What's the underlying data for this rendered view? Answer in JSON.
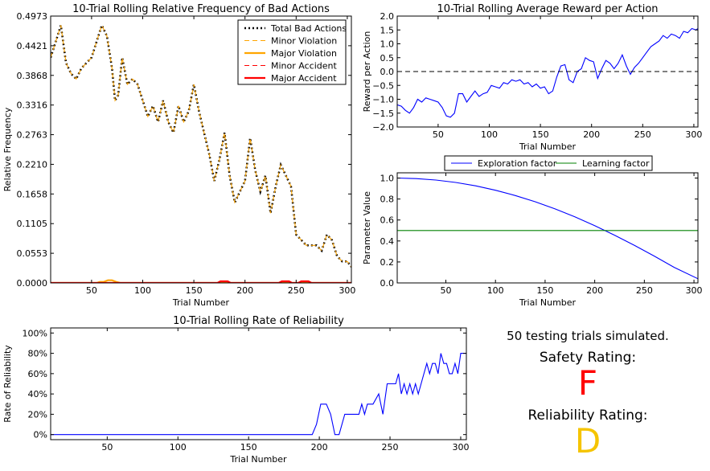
{
  "chart_data": [
    {
      "id": "bad_actions",
      "type": "line",
      "title": "10-Trial Rolling Relative Frequency of Bad Actions",
      "xlabel": "Trial Number",
      "ylabel": "Relative Frequency",
      "xlim": [
        10,
        304
      ],
      "ylim": [
        0,
        0.4973
      ],
      "xticks": [
        50,
        100,
        150,
        200,
        250,
        300
      ],
      "yticks": [
        "0.0000",
        "0.0553",
        "0.1105",
        "0.1658",
        "0.2210",
        "0.2763",
        "0.3316",
        "0.3868",
        "0.4421",
        "0.4973"
      ],
      "legend": "top-right",
      "series": [
        {
          "name": "Total Bad Actions",
          "color": "#000000",
          "style": "dotted",
          "x": [
            10,
            15,
            20,
            25,
            30,
            35,
            40,
            45,
            50,
            55,
            60,
            65,
            70,
            73,
            76,
            80,
            85,
            90,
            95,
            100,
            105,
            110,
            115,
            120,
            125,
            130,
            135,
            140,
            145,
            150,
            155,
            160,
            165,
            170,
            175,
            180,
            185,
            190,
            195,
            200,
            205,
            210,
            215,
            220,
            225,
            230,
            235,
            240,
            245,
            250,
            255,
            260,
            265,
            270,
            275,
            280,
            285,
            290,
            295,
            300,
            304
          ],
          "y": [
            0.42,
            0.45,
            0.48,
            0.41,
            0.39,
            0.38,
            0.4,
            0.41,
            0.42,
            0.45,
            0.48,
            0.46,
            0.4,
            0.34,
            0.35,
            0.42,
            0.37,
            0.38,
            0.37,
            0.34,
            0.31,
            0.33,
            0.3,
            0.34,
            0.3,
            0.28,
            0.33,
            0.3,
            0.32,
            0.37,
            0.32,
            0.28,
            0.24,
            0.19,
            0.23,
            0.28,
            0.2,
            0.15,
            0.17,
            0.19,
            0.27,
            0.21,
            0.17,
            0.2,
            0.13,
            0.18,
            0.22,
            0.2,
            0.18,
            0.09,
            0.08,
            0.07,
            0.07,
            0.07,
            0.06,
            0.09,
            0.08,
            0.05,
            0.04,
            0.04,
            0.03
          ]
        },
        {
          "name": "Minor Violation",
          "color": "#ffa500",
          "style": "dashed",
          "x": [
            10,
            15,
            20,
            25,
            30,
            35,
            40,
            45,
            50,
            55,
            60,
            65,
            70,
            73,
            76,
            80,
            85,
            90,
            95,
            100,
            105,
            110,
            115,
            120,
            125,
            130,
            135,
            140,
            145,
            150,
            155,
            160,
            165,
            170,
            175,
            180,
            185,
            190,
            195,
            200,
            205,
            210,
            215,
            220,
            225,
            230,
            235,
            240,
            245,
            250,
            255,
            260,
            265,
            270,
            275,
            280,
            285,
            290,
            295,
            300,
            304
          ],
          "y": [
            0.42,
            0.45,
            0.48,
            0.41,
            0.39,
            0.38,
            0.4,
            0.41,
            0.42,
            0.45,
            0.48,
            0.46,
            0.4,
            0.34,
            0.35,
            0.42,
            0.37,
            0.38,
            0.37,
            0.34,
            0.31,
            0.33,
            0.3,
            0.34,
            0.3,
            0.28,
            0.33,
            0.3,
            0.32,
            0.37,
            0.32,
            0.28,
            0.24,
            0.19,
            0.23,
            0.28,
            0.2,
            0.15,
            0.17,
            0.19,
            0.27,
            0.21,
            0.17,
            0.2,
            0.13,
            0.18,
            0.22,
            0.2,
            0.18,
            0.09,
            0.08,
            0.07,
            0.07,
            0.07,
            0.06,
            0.09,
            0.08,
            0.05,
            0.04,
            0.04,
            0.03
          ]
        },
        {
          "name": "Major Violation",
          "color": "#ffa500",
          "style": "solid",
          "x": [
            10,
            55,
            58,
            62,
            66,
            70,
            74,
            78,
            304
          ],
          "y": [
            0,
            0,
            0.002,
            0.002,
            0.005,
            0.005,
            0.002,
            0,
            0
          ]
        },
        {
          "name": "Minor Accident",
          "color": "#ff0000",
          "style": "dashed",
          "x": [
            10,
            304
          ],
          "y": [
            0,
            0
          ]
        },
        {
          "name": "Major Accident",
          "color": "#ff0000",
          "style": "solid",
          "x": [
            10,
            173,
            176,
            183,
            186,
            233,
            236,
            243,
            246,
            252,
            255,
            262,
            265,
            304
          ],
          "y": [
            0,
            0,
            0.003,
            0.003,
            0,
            0,
            0.003,
            0.003,
            0,
            0,
            0.003,
            0.003,
            0,
            0
          ]
        }
      ]
    },
    {
      "id": "reward",
      "type": "line",
      "title": "10-Trial Rolling Average Reward per Action",
      "xlabel": "Trial Number",
      "ylabel": "Reward per Action",
      "xlim": [
        10,
        304
      ],
      "ylim": [
        -2.0,
        2.0
      ],
      "xticks": [
        50,
        100,
        150,
        200,
        250,
        300
      ],
      "yticks": [
        "−2.0",
        "−1.5",
        "−1.0",
        "−0.5",
        "0.0",
        "0.5",
        "1.0",
        "1.5",
        "2.0"
      ],
      "series": [
        {
          "color": "#0000ff",
          "x": [
            10,
            14,
            18,
            22,
            26,
            30,
            34,
            38,
            42,
            46,
            50,
            54,
            58,
            62,
            66,
            70,
            74,
            78,
            82,
            86,
            90,
            94,
            98,
            102,
            106,
            110,
            114,
            118,
            122,
            126,
            130,
            134,
            138,
            142,
            146,
            150,
            154,
            158,
            162,
            166,
            170,
            174,
            178,
            182,
            186,
            190,
            194,
            198,
            202,
            206,
            210,
            214,
            218,
            222,
            226,
            230,
            234,
            238,
            242,
            246,
            250,
            254,
            258,
            262,
            266,
            270,
            274,
            278,
            282,
            286,
            290,
            294,
            298,
            302,
            304
          ],
          "y": [
            -1.2,
            -1.25,
            -1.4,
            -1.5,
            -1.3,
            -1.0,
            -1.1,
            -0.95,
            -1.0,
            -1.05,
            -1.1,
            -1.3,
            -1.6,
            -1.65,
            -1.5,
            -0.8,
            -0.8,
            -1.1,
            -0.9,
            -0.7,
            -0.9,
            -0.8,
            -0.75,
            -0.5,
            -0.55,
            -0.6,
            -0.4,
            -0.45,
            -0.3,
            -0.35,
            -0.3,
            -0.45,
            -0.4,
            -0.55,
            -0.45,
            -0.6,
            -0.55,
            -0.8,
            -0.7,
            -0.2,
            0.2,
            0.25,
            -0.3,
            -0.4,
            0.0,
            0.1,
            0.5,
            0.4,
            0.35,
            -0.25,
            0.1,
            0.4,
            0.3,
            0.1,
            0.3,
            0.6,
            0.2,
            -0.1,
            0.15,
            0.3,
            0.5,
            0.7,
            0.9,
            1.0,
            1.1,
            1.3,
            1.2,
            1.35,
            1.3,
            1.2,
            1.45,
            1.4,
            1.55,
            1.5,
            1.55
          ]
        },
        {
          "color": "#000000",
          "style": "dashed",
          "x": [
            10,
            304
          ],
          "y": [
            0,
            0
          ]
        }
      ]
    },
    {
      "id": "parameters",
      "type": "line",
      "title": "",
      "xlabel": "Trial Number",
      "ylabel": "Parameter Value",
      "xlim": [
        1,
        304
      ],
      "ylim": [
        0.0,
        1.05
      ],
      "xticks": [
        50,
        100,
        150,
        200,
        250,
        300
      ],
      "yticks": [
        "0.0",
        "0.2",
        "0.4",
        "0.6",
        "0.8",
        "1.0"
      ],
      "legend": "top-center",
      "series": [
        {
          "name": "Exploration factor",
          "color": "#0000ff",
          "x": [
            1,
            20,
            40,
            60,
            80,
            100,
            120,
            140,
            160,
            180,
            200,
            220,
            240,
            260,
            280,
            304
          ],
          "y": [
            1.0,
            0.995,
            0.981,
            0.958,
            0.926,
            0.884,
            0.833,
            0.774,
            0.706,
            0.63,
            0.546,
            0.455,
            0.358,
            0.256,
            0.149,
            0.04
          ]
        },
        {
          "name": "Learning factor",
          "color": "#008000",
          "x": [
            1,
            304
          ],
          "y": [
            0.5,
            0.5
          ]
        }
      ]
    },
    {
      "id": "reliability",
      "type": "line",
      "title": "10-Trial Rolling Rate of Reliability",
      "xlabel": "Trial Number",
      "ylabel": "Rate of Reliability",
      "xlim": [
        10,
        304
      ],
      "ylim": [
        -0.05,
        1.05
      ],
      "xticks": [
        50,
        100,
        150,
        200,
        250,
        300
      ],
      "yticks": [
        "0%",
        "20%",
        "40%",
        "60%",
        "80%",
        "100%"
      ],
      "series": [
        {
          "color": "#0000ff",
          "x": [
            10,
            195,
            198,
            201,
            205,
            208,
            211,
            214,
            218,
            222,
            228,
            230,
            232,
            234,
            238,
            242,
            245,
            248,
            250,
            254,
            256,
            258,
            260,
            262,
            264,
            266,
            268,
            270,
            272,
            274,
            276,
            278,
            280,
            282,
            284,
            286,
            288,
            290,
            292,
            294,
            296,
            298,
            300,
            304
          ],
          "y": [
            0,
            0,
            0.1,
            0.3,
            0.3,
            0.2,
            0.0,
            0.0,
            0.2,
            0.2,
            0.2,
            0.3,
            0.2,
            0.3,
            0.3,
            0.4,
            0.2,
            0.5,
            0.5,
            0.5,
            0.6,
            0.4,
            0.5,
            0.4,
            0.5,
            0.4,
            0.5,
            0.4,
            0.5,
            0.6,
            0.7,
            0.6,
            0.7,
            0.7,
            0.6,
            0.8,
            0.7,
            0.7,
            0.6,
            0.6,
            0.7,
            0.6,
            0.8,
            0.8
          ]
        }
      ]
    }
  ],
  "summary": {
    "trials_text": "50 testing trials simulated.",
    "safety_label": "Safety Rating:",
    "safety_grade": "F",
    "safety_color": "#ff0000",
    "reliability_label": "Reliability Rating:",
    "reliability_grade": "D",
    "reliability_color": "#f5c400"
  }
}
